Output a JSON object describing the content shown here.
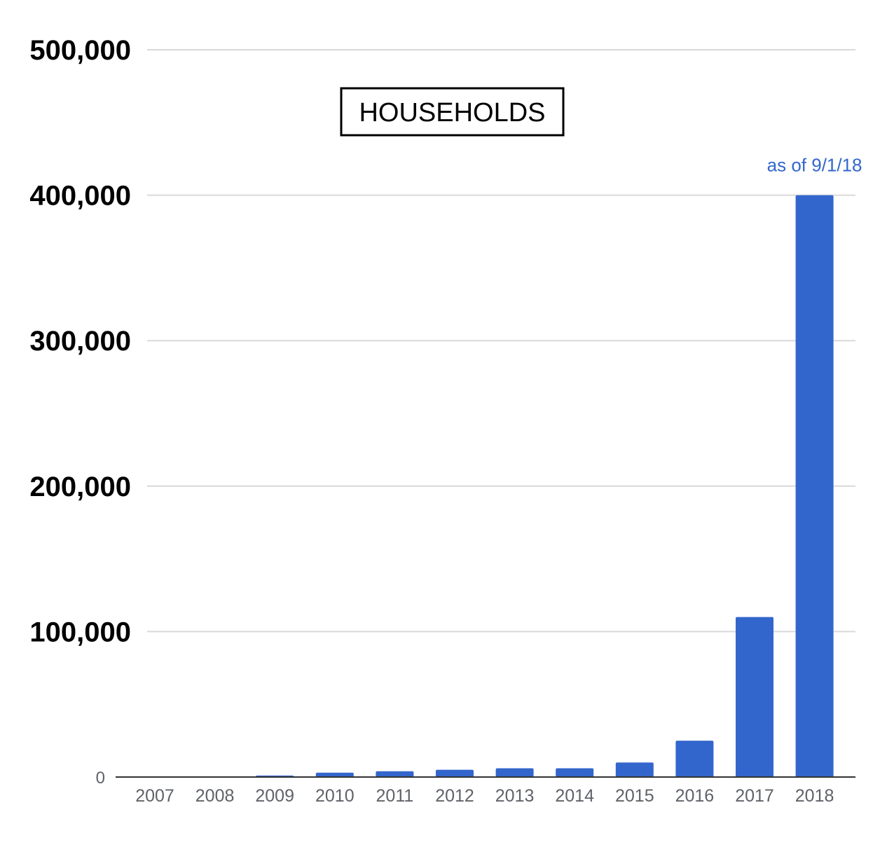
{
  "chart_data": {
    "type": "bar",
    "title": "HOUSEHOLDS",
    "xlabel": "",
    "ylabel": "",
    "categories": [
      "2007",
      "2008",
      "2009",
      "2010",
      "2011",
      "2012",
      "2013",
      "2014",
      "2015",
      "2016",
      "2017",
      "2018"
    ],
    "values": [
      0,
      0,
      1000,
      3000,
      4000,
      5000,
      6000,
      6000,
      10000,
      25000,
      110000,
      400000
    ],
    "ylim": [
      0,
      500000
    ],
    "yticks": [
      "0",
      "100,000",
      "200,000",
      "300,000",
      "400,000",
      "500,000"
    ],
    "ytick_values": [
      0,
      100000,
      200000,
      300000,
      400000,
      500000
    ],
    "grid": true,
    "legend": "none",
    "bar_color": "#3366cc",
    "annotations": [
      {
        "category": "2018",
        "text": "as of 9/1/18",
        "color": "#3366cc"
      }
    ]
  }
}
